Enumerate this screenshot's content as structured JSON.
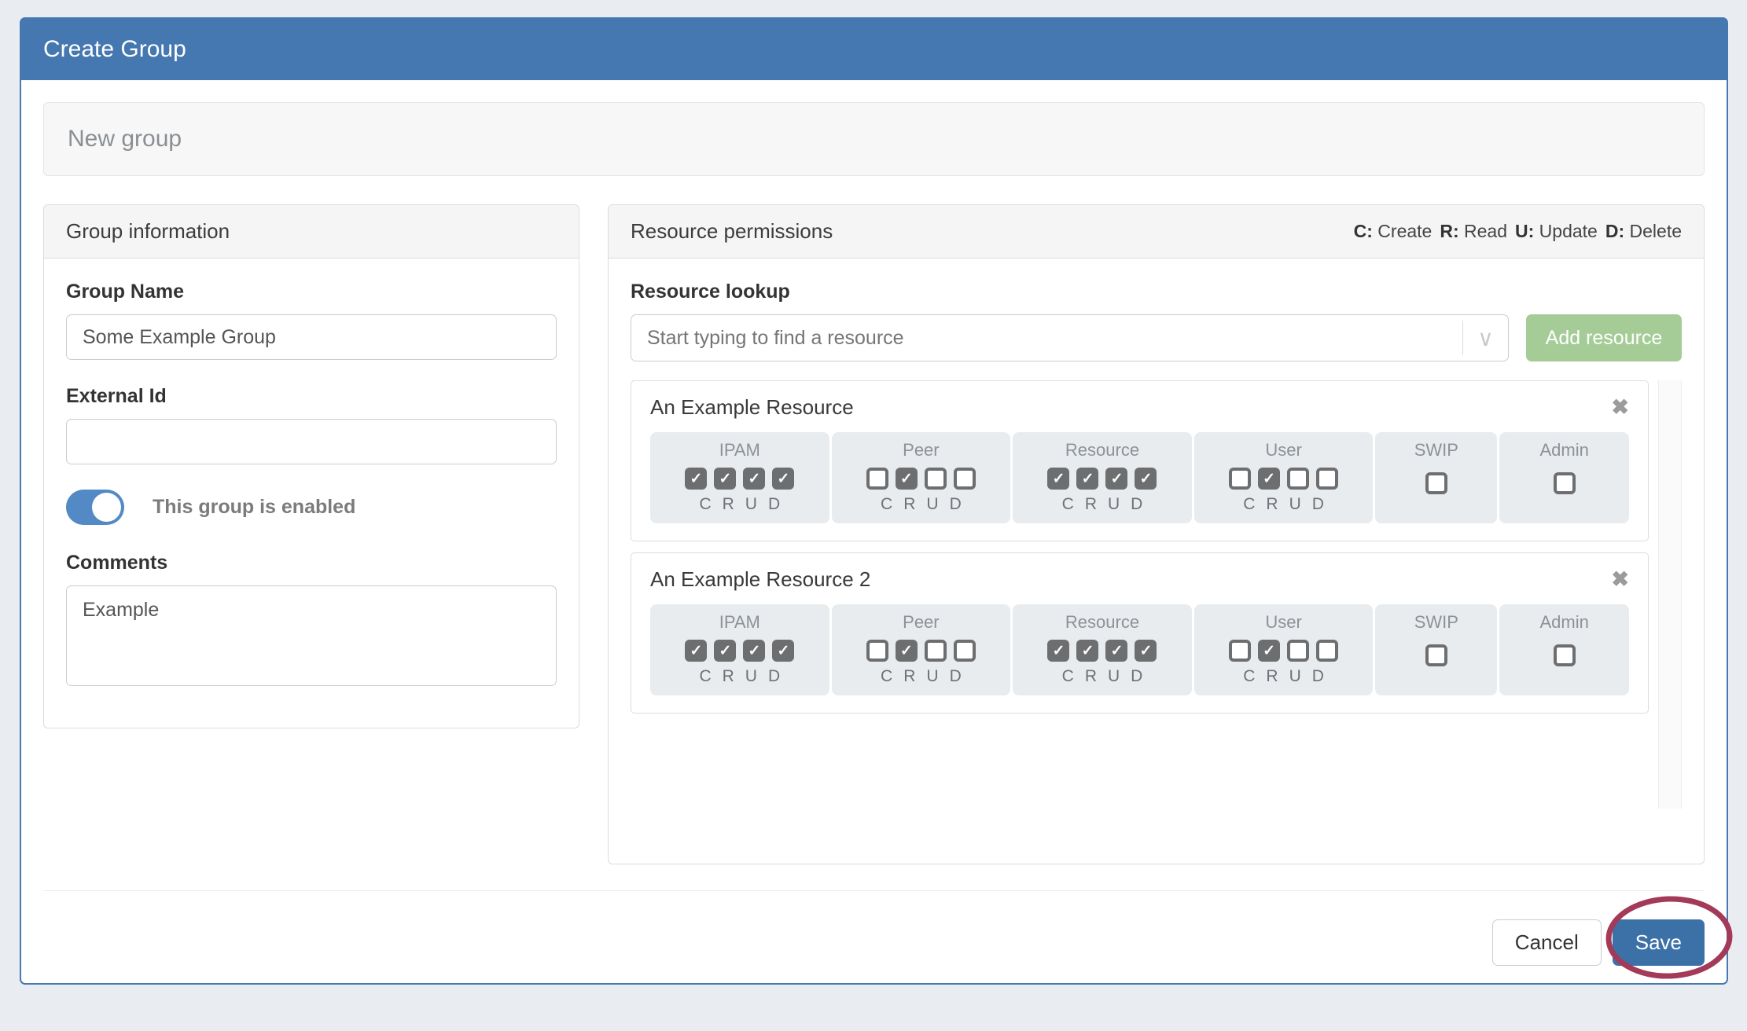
{
  "modal": {
    "title": "Create Group",
    "subtitle": "New group"
  },
  "group_info": {
    "title": "Group information",
    "group_name_label": "Group Name",
    "group_name_value": "Some Example Group",
    "external_id_label": "External Id",
    "external_id_value": "",
    "enabled_toggle_label": "This group is enabled",
    "enabled": true,
    "comments_label": "Comments",
    "comments_value": "Example"
  },
  "permissions": {
    "title": "Resource permissions",
    "legend": [
      {
        "key": "C:",
        "label": "Create"
      },
      {
        "key": "R:",
        "label": "Read"
      },
      {
        "key": "U:",
        "label": "Update"
      },
      {
        "key": "D:",
        "label": "Delete"
      }
    ],
    "lookup_label": "Resource lookup",
    "lookup_placeholder": "Start typing to find a resource",
    "add_button_label": "Add resource",
    "crud_letters": [
      "C",
      "R",
      "U",
      "D"
    ],
    "close_icon": "✖",
    "check_glyph": "✓",
    "caret_glyph": "∨",
    "resources": [
      {
        "name": "An Example Resource",
        "groups": [
          {
            "label": "IPAM",
            "checks": [
              true,
              true,
              true,
              true
            ]
          },
          {
            "label": "Peer",
            "checks": [
              false,
              true,
              false,
              false
            ]
          },
          {
            "label": "Resource",
            "checks": [
              true,
              true,
              true,
              true
            ]
          },
          {
            "label": "User",
            "checks": [
              false,
              true,
              false,
              false
            ]
          },
          {
            "label": "SWIP",
            "checks": [
              false
            ]
          },
          {
            "label": "Admin",
            "checks": [
              false
            ]
          }
        ]
      },
      {
        "name": "An Example Resource 2",
        "groups": [
          {
            "label": "IPAM",
            "checks": [
              true,
              true,
              true,
              true
            ]
          },
          {
            "label": "Peer",
            "checks": [
              false,
              true,
              false,
              false
            ]
          },
          {
            "label": "Resource",
            "checks": [
              true,
              true,
              true,
              true
            ]
          },
          {
            "label": "User",
            "checks": [
              false,
              true,
              false,
              false
            ]
          },
          {
            "label": "SWIP",
            "checks": [
              false
            ]
          },
          {
            "label": "Admin",
            "checks": [
              false
            ]
          }
        ]
      }
    ]
  },
  "footer": {
    "cancel_label": "Cancel",
    "save_label": "Save"
  },
  "colors": {
    "header_blue": "#4577b0",
    "modal_border_blue": "#4679b2",
    "toggle_blue": "#5389c4",
    "save_blue": "#3c71a8",
    "add_green": "#a5cc96",
    "annotation_red": "#a23a58",
    "checkbox_dark": "#6d6e70"
  }
}
